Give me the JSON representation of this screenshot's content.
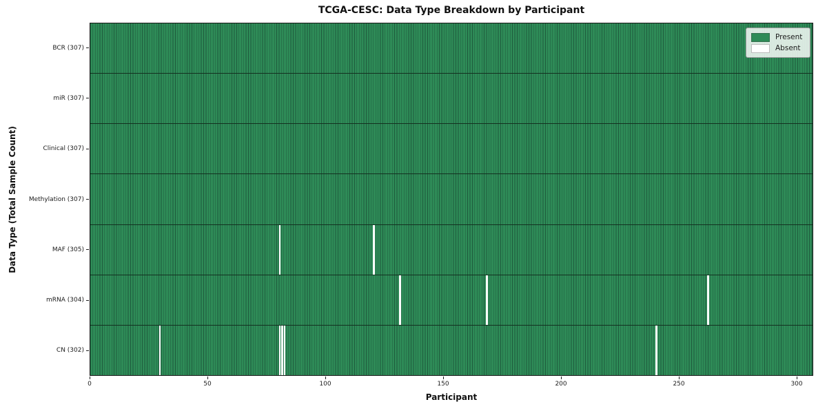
{
  "figure_title": "TCGA-CESC: Data Type Breakdown by Participant",
  "chart_data": {
    "type": "heatmap",
    "title": "TCGA-CESC: Data Type Breakdown by Participant",
    "xlabel": "Participant",
    "ylabel": "Data Type (Total Sample Count)",
    "x_ticks": [
      0,
      50,
      100,
      150,
      200,
      250,
      300
    ],
    "xlim": [
      0,
      307
    ],
    "n_participants": 307,
    "grid": false,
    "legend_position": "upper right",
    "legend": [
      {
        "label": "Present",
        "color": "#2e8b57"
      },
      {
        "label": "Absent",
        "color": "#ffffff"
      }
    ],
    "colors": {
      "present": "#2e8b57",
      "cell_edge": "#1e5a3c",
      "row_separator": "#13301f",
      "absent": "#ffffff"
    },
    "rows": [
      {
        "label": "BCR (307)",
        "data_type": "BCR",
        "total": 307,
        "absent_participants": []
      },
      {
        "label": "miR (307)",
        "data_type": "miR",
        "total": 307,
        "absent_participants": []
      },
      {
        "label": "Clinical (307)",
        "data_type": "Clinical",
        "total": 307,
        "absent_participants": []
      },
      {
        "label": "Methylation (307)",
        "data_type": "Methylation",
        "total": 307,
        "absent_participants": []
      },
      {
        "label": "MAF (305)",
        "data_type": "MAF",
        "total": 305,
        "absent_participants": [
          80,
          120
        ]
      },
      {
        "label": "mRNA (304)",
        "data_type": "mRNA",
        "total": 304,
        "absent_participants": [
          131,
          168,
          262
        ]
      },
      {
        "label": "CN (302)",
        "data_type": "CN",
        "total": 302,
        "absent_participants": [
          29,
          80,
          81,
          82,
          240
        ]
      }
    ]
  }
}
